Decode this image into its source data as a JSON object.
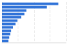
{
  "chart_data": {
    "type": "bar",
    "orientation": "horizontal",
    "categories": [
      null,
      null,
      null,
      null,
      null,
      null,
      null,
      null,
      null,
      null,
      null,
      null
    ],
    "values": [
      88,
      70,
      38,
      35,
      30,
      24,
      21,
      17,
      14,
      13,
      11,
      10
    ],
    "color": "#2f72d8",
    "xlim": [
      0,
      100
    ],
    "xticks": [
      0,
      25,
      50,
      75,
      100
    ],
    "grid": true,
    "tick_labels": false
  }
}
